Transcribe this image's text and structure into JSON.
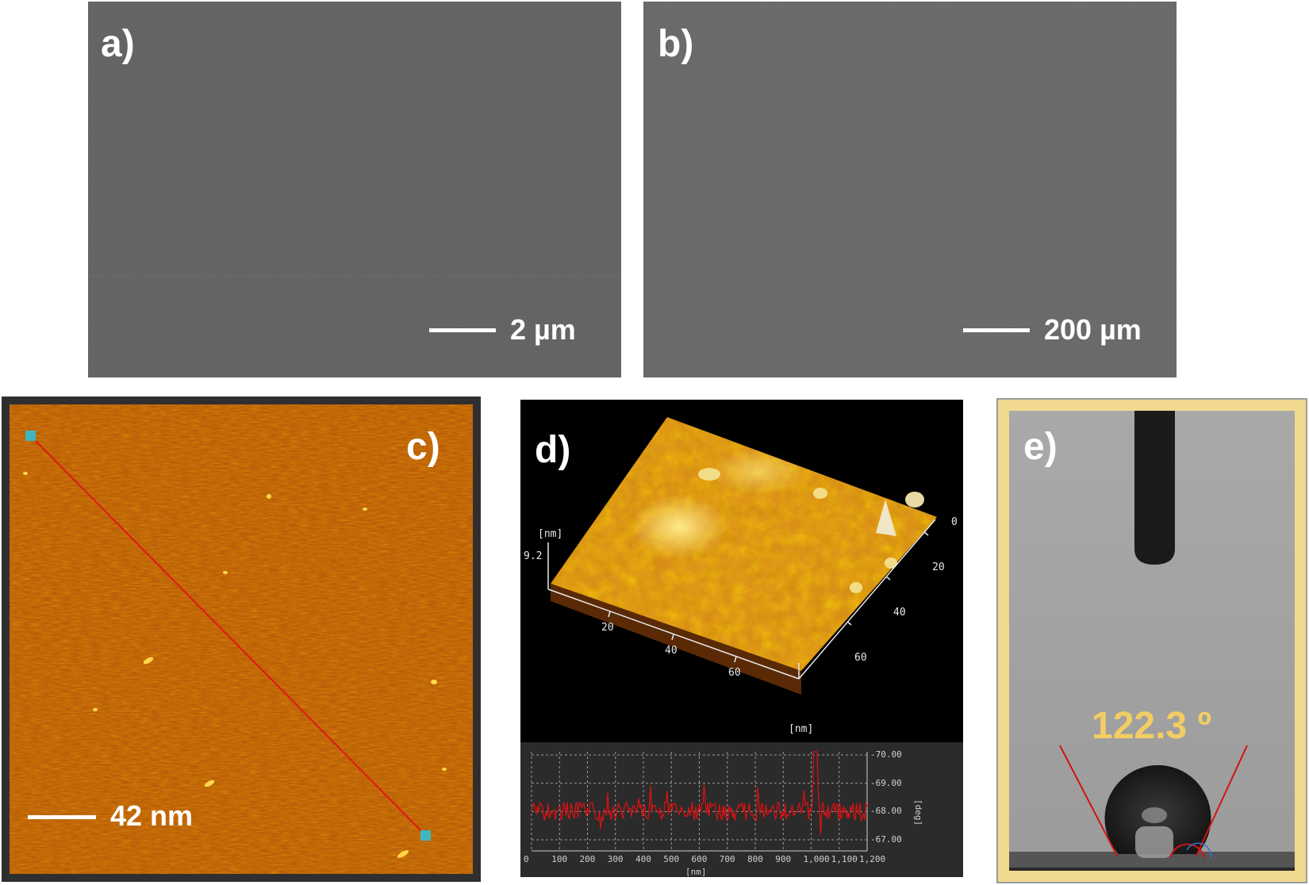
{
  "panels": {
    "a": {
      "label": "a)",
      "scale_bar": "2 µm"
    },
    "b": {
      "label": "b)",
      "scale_bar": "200 µm"
    },
    "c": {
      "label": "c)",
      "scale_bar": "42 nm"
    },
    "d": {
      "label": "d)",
      "surface_3d": {
        "z_unit": "[nm]",
        "z_max": "9.2",
        "x_ticks": [
          "20",
          "40",
          "60"
        ],
        "x_unit": "[nm]",
        "y_ticks": [
          "0",
          "20",
          "40",
          "60"
        ]
      },
      "profile": {
        "y_ticks": [
          "-70.00",
          "-69.00",
          "-68.00",
          "-67.00"
        ],
        "y_unit": "[deg]",
        "x_ticks": [
          "0",
          "100",
          "200",
          "300",
          "400",
          "500",
          "600",
          "700",
          "800",
          "900",
          "1,000",
          "1,100",
          "1,200"
        ],
        "x_unit": "[nm]"
      }
    },
    "e": {
      "label": "e)",
      "contact_angle": "122.3 º"
    }
  },
  "colors": {
    "sem_gray": "#5f5f5f",
    "afm_orange": "#b85a0c",
    "profile_line": "#e01010",
    "angle_text": "#f3cd64",
    "frame_yellow": "#f1d98f",
    "marker_cyan": "#3fb6c0"
  }
}
